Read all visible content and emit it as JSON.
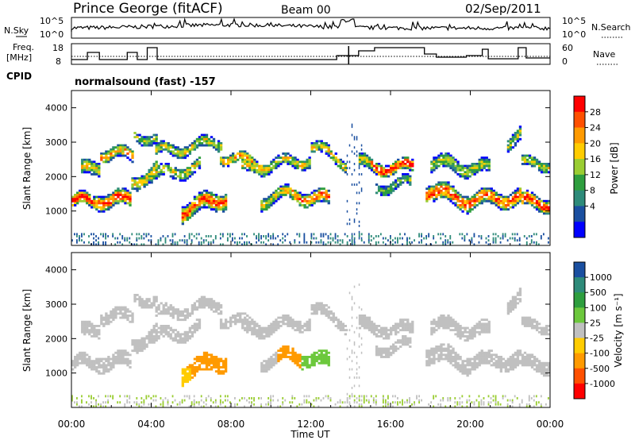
{
  "header": {
    "station": "Prince George (fitACF)",
    "beam": "Beam 00",
    "date": "02/Sep/2011"
  },
  "noise_panel": {
    "left_label": "N.Sky",
    "right_label": "N.Search",
    "left_ticks": [
      "10^5",
      "10^0"
    ],
    "right_ticks": [
      "10^5",
      "10^0"
    ]
  },
  "freq_panel": {
    "left_label_1": "Freq.",
    "left_label_2": "[MHz]",
    "right_label": "Nave",
    "left_ticks": [
      "18",
      "8"
    ],
    "right_ticks": [
      "60",
      "0"
    ]
  },
  "cpid": {
    "label": "CPID",
    "program": "normalsound (fast) -157"
  },
  "chart_data": [
    {
      "type": "heatmap",
      "name": "power",
      "ylabel": "Slant Range [km]",
      "ylim": [
        0,
        4500
      ],
      "yticks": [
        "1000",
        "2000",
        "3000",
        "4000"
      ],
      "xlim": [
        0,
        24
      ],
      "colorbar": {
        "label": "Power [dB]",
        "ticks": [
          "28",
          "24",
          "20",
          "16",
          "12",
          "8",
          "4"
        ],
        "colors": [
          "#ff0000",
          "#ff5000",
          "#ff9a00",
          "#ffcc00",
          "#9acd32",
          "#2e9e3e",
          "#2e8b7a",
          "#1a4fa0",
          "#0000ff"
        ]
      }
    },
    {
      "type": "heatmap",
      "name": "velocity",
      "ylabel": "Slant Range [km]",
      "ylim": [
        0,
        4500
      ],
      "yticks": [
        "1000",
        "2000",
        "3000",
        "4000"
      ],
      "xlim": [
        0,
        24
      ],
      "colorbar": {
        "label": "Velocity [m s⁻¹]",
        "ticks": [
          "1000",
          "500",
          "100",
          "25",
          "-25",
          "-100",
          "-500",
          "-1000"
        ],
        "colors": [
          "#1a4fa0",
          "#2e8b7a",
          "#2e9e3e",
          "#6cc83c",
          "#c0c0c0",
          "#ffcc00",
          "#ff9a00",
          "#ff5000",
          "#ff0000"
        ]
      }
    }
  ],
  "x_axis": {
    "ticks": [
      "00:00",
      "04:00",
      "08:00",
      "12:00",
      "16:00",
      "20:00",
      "00:00"
    ],
    "label": "Time UT"
  }
}
